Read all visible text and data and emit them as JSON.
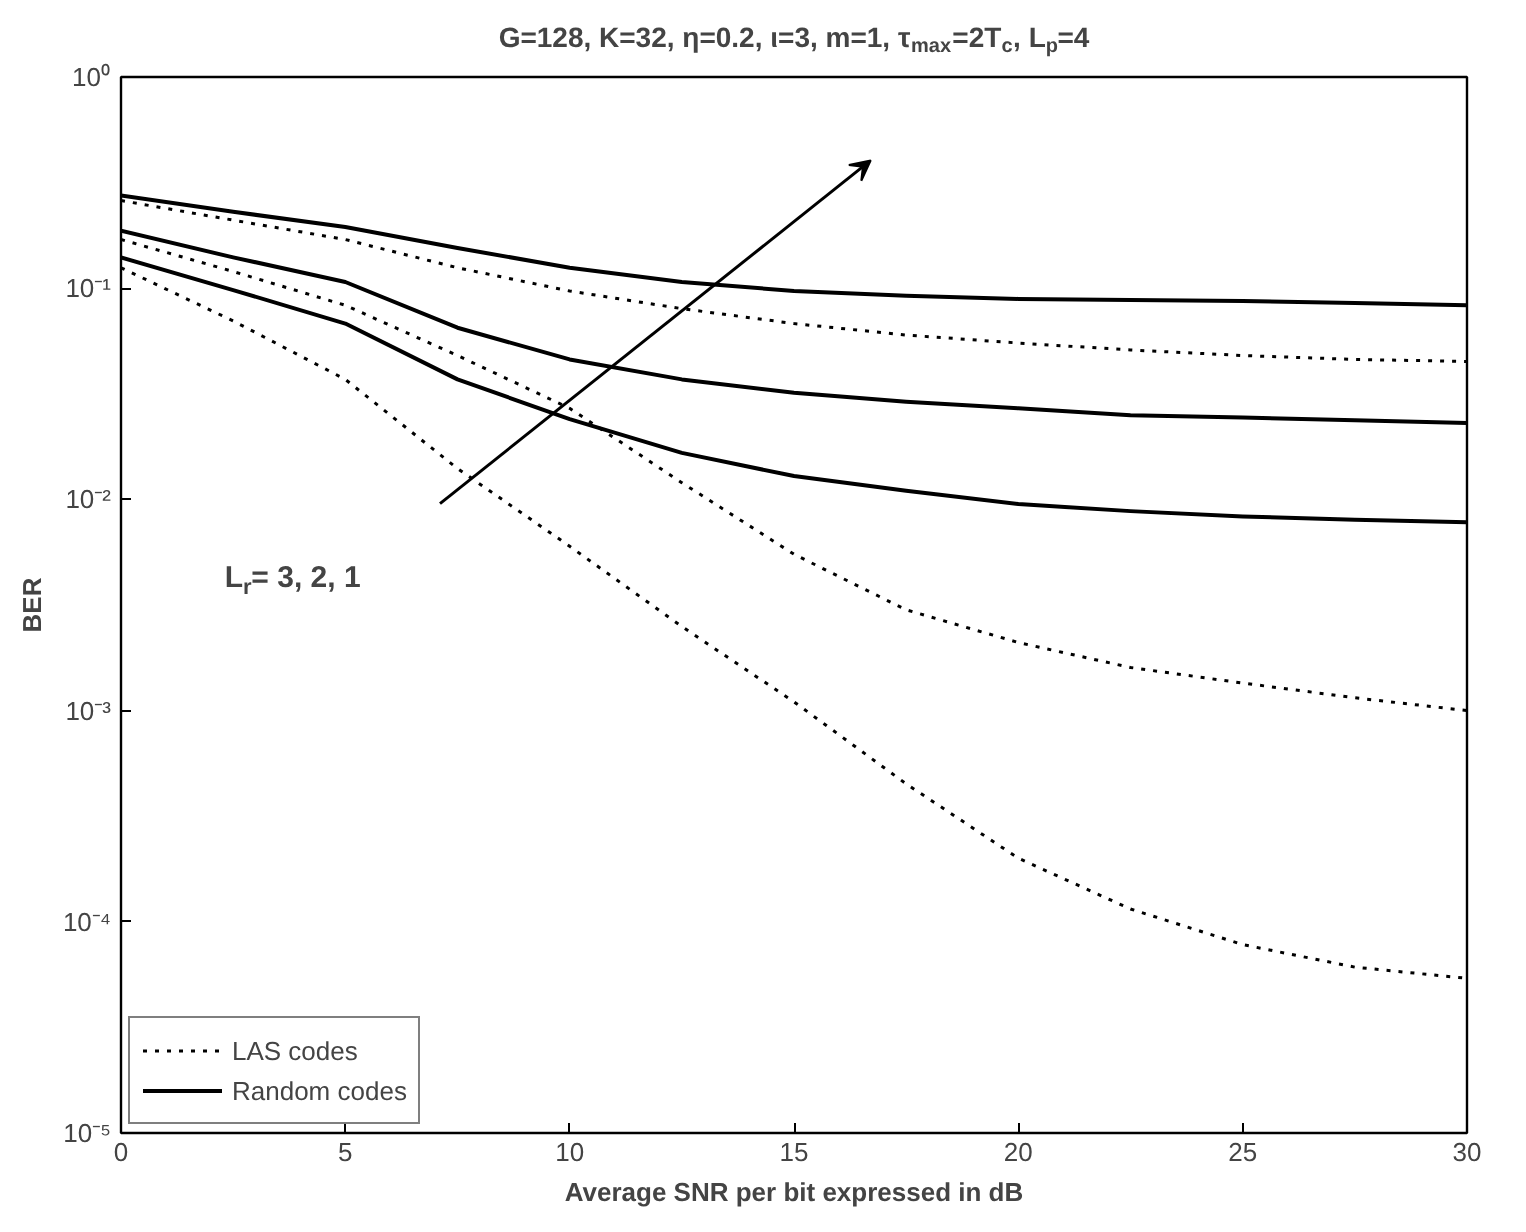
{
  "chart_data": {
    "type": "line",
    "title": "G=128, K=32, η=0.2, ι=3, m=1, τ$_{max}$=2T$_{c}$, L$_{p}$=4",
    "xlabel": "Average SNR per bit expressed in dB",
    "ylabel": "BER",
    "x": [
      0,
      2.5,
      5,
      7.5,
      10,
      12.5,
      15,
      17.5,
      20,
      22.5,
      25,
      27.5,
      30
    ],
    "series": [
      {
        "name": "LAS codes",
        "color": "#000000",
        "line_style": "dotted",
        "values": [
          0.26,
          0.21,
          0.17,
          0.125,
          0.097,
          0.08,
          0.068,
          0.06,
          0.055,
          0.051,
          0.048,
          0.046,
          0.045
        ]
      },
      {
        "name": "Random codes",
        "color": "#000000",
        "line_style": "solid",
        "values": [
          0.275,
          0.23,
          0.195,
          0.155,
          0.125,
          0.107,
          0.097,
          0.092,
          0.089,
          0.088,
          0.087,
          0.085,
          0.083
        ]
      },
      {
        "color": "#000000",
        "line_style": "solid",
        "values": [
          0.187,
          0.14,
          0.107,
          0.065,
          0.046,
          0.037,
          0.032,
          0.029,
          0.027,
          0.025,
          0.0244,
          0.0237,
          0.023
        ]
      },
      {
        "color": "#000000",
        "line_style": "dotted",
        "values": [
          0.17,
          0.12,
          0.083,
          0.048,
          0.027,
          0.012,
          0.0055,
          0.003,
          0.0021,
          0.0016,
          0.00135,
          0.00115,
          0.001
        ]
      },
      {
        "color": "#000000",
        "line_style": "solid",
        "values": [
          0.14,
          0.098,
          0.068,
          0.037,
          0.024,
          0.0166,
          0.0129,
          0.011,
          0.0095,
          0.0088,
          0.0083,
          0.008,
          0.0078
        ]
      },
      {
        "color": "#000000",
        "line_style": "dotted",
        "values": [
          0.125,
          0.07,
          0.037,
          0.014,
          0.006,
          0.0025,
          0.0011,
          0.00045,
          0.0002,
          0.000115,
          7.8e-05,
          6.1e-05,
          5.4e-05
        ]
      }
    ],
    "xlim": [
      0,
      30
    ],
    "xticks": [
      0,
      5,
      10,
      15,
      20,
      25,
      30
    ],
    "ylim": [
      1e-05,
      1
    ],
    "yticks": [
      {
        "value": 1e-05,
        "label": "10⁻⁵"
      },
      {
        "value": 0.0001,
        "label": "10⁻⁴"
      },
      {
        "value": 0.001,
        "label": "10⁻³"
      },
      {
        "value": 0.01,
        "label": "10⁻²"
      },
      {
        "value": 0.1,
        "label": "10⁻¹"
      },
      {
        "value": 1,
        "label": "10⁰"
      }
    ],
    "log": "y",
    "grid": false,
    "legend": "bottom left",
    "annotations": [
      "L$_{r}$= 3,  2,  1"
    ]
  }
}
